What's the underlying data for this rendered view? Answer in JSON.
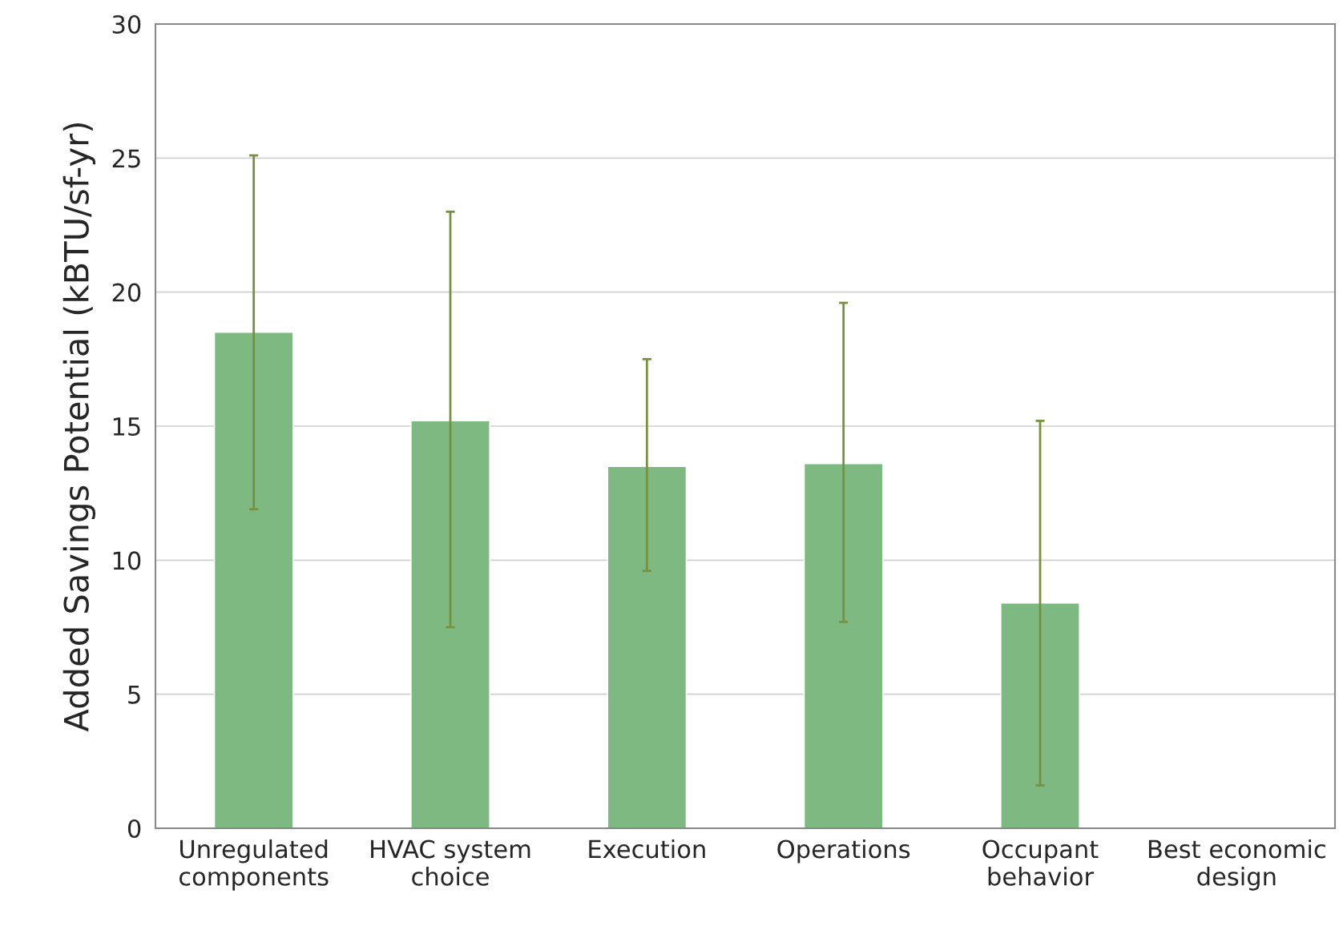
{
  "chart_data": {
    "type": "bar",
    "ylabel": "Added Savings Potential (kBTU/sf-yr)",
    "categories": [
      "Unregulated components",
      "HVAC system choice",
      "Execution",
      "Operations",
      "Occupant behavior",
      "Best economic design"
    ],
    "values": [
      18.5,
      15.2,
      13.5,
      13.6,
      8.4,
      null
    ],
    "errors": [
      [
        11.9,
        25.1
      ],
      [
        7.5,
        23.0
      ],
      [
        9.6,
        17.5
      ],
      [
        7.7,
        19.6
      ],
      [
        1.6,
        15.2
      ],
      null
    ],
    "color": "#7fb982",
    "ylim": [
      0,
      30
    ],
    "yticks": [
      0,
      5,
      10,
      15,
      20,
      25,
      30
    ],
    "grid": "y",
    "legend": false
  }
}
